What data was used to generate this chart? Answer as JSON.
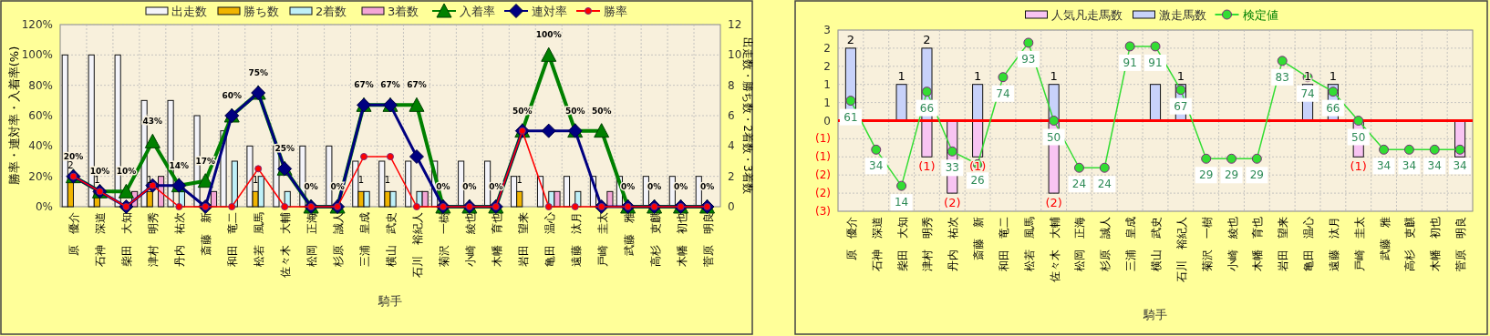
{
  "chart_data": [
    {
      "type": "bar",
      "categories": [
        "原　優介",
        "石神　深道",
        "柴田　大知",
        "津村　明秀",
        "丹内　祐次",
        "斎藤　新",
        "和田　竜二",
        "松若　風馬",
        "佐々木　大輔",
        "松岡　正海",
        "杉原　誠人",
        "三浦　皇成",
        "横山　武史",
        "石川　裕紀人",
        "菊沢　一樹",
        "小崎　綾也",
        "木幡　育也",
        "岩田　望来",
        "亀田　温心",
        "遠藤　汰月",
        "戸崎　圭太",
        "武藤　雅",
        "高杉　吏麒",
        "木幡　初也",
        "菅原　明良"
      ],
      "xlabel": "騎手",
      "ylabel": "勝率・連対率・入着率(%)",
      "y2label": "出走数・勝ち数・2着数・3着数",
      "ylim": [
        0,
        120
      ],
      "yticks": [
        {
          "value": 0,
          "label": "0%"
        },
        {
          "value": 20,
          "label": "20%"
        },
        {
          "value": 40,
          "label": "40%"
        },
        {
          "value": 60,
          "label": "60%"
        },
        {
          "value": 80,
          "label": "80%"
        },
        {
          "value": 100,
          "label": "100%"
        },
        {
          "value": 120,
          "label": "120%"
        }
      ],
      "y2lim": [
        0,
        12
      ],
      "y2ticks": [
        0,
        2,
        4,
        6,
        8,
        10,
        12
      ],
      "grid": true,
      "legend": "top",
      "series": [
        {
          "name": "出走数",
          "color": "#f4f4fa",
          "axis": "y2",
          "values": [
            10,
            10,
            10,
            7,
            7,
            6,
            5,
            4,
            4,
            4,
            4,
            3,
            3,
            3,
            3,
            3,
            3,
            2,
            2,
            2,
            2,
            2,
            2,
            2,
            2
          ]
        },
        {
          "name": "勝ち数",
          "color": "#f0b400",
          "axis": "y2",
          "values": [
            2,
            1,
            0,
            1,
            0,
            0,
            0,
            1,
            0,
            0,
            0,
            1,
            1,
            0,
            0,
            0,
            0,
            1,
            0,
            0,
            0,
            0,
            0,
            0,
            0
          ],
          "value_labels": [
            "2",
            "1",
            null,
            "1",
            null,
            null,
            null,
            "1",
            null,
            null,
            null,
            "1",
            "1",
            null,
            null,
            null,
            null,
            "1",
            null,
            null,
            null,
            null,
            null,
            null,
            null
          ]
        },
        {
          "name": "2着数",
          "color": "#bff0f8",
          "axis": "y2",
          "values": [
            0,
            0,
            0,
            0,
            1,
            0,
            3,
            2,
            1,
            0,
            0,
            1,
            1,
            1,
            0,
            0,
            0,
            0,
            1,
            1,
            0,
            0,
            0,
            0,
            0
          ]
        },
        {
          "name": "3着数",
          "color": "#f4a6d6",
          "axis": "y2",
          "values": [
            0,
            0,
            1,
            2,
            0,
            1,
            0,
            0,
            0,
            0,
            0,
            0,
            0,
            1,
            0,
            0,
            0,
            0,
            1,
            0,
            1,
            0,
            0,
            0,
            0
          ]
        },
        {
          "name": "入着率",
          "type": "line",
          "color": "#008000",
          "marker": "triangle",
          "values": [
            20,
            10,
            10,
            43,
            14,
            17,
            60,
            75,
            25,
            0,
            0,
            67,
            67,
            67,
            0,
            0,
            0,
            50,
            100,
            50,
            50,
            0,
            0,
            0,
            0
          ],
          "value_labels": [
            "20%",
            "10%",
            "10%",
            "43%",
            "14%",
            "17%",
            "60%",
            "75%",
            "25%",
            "0%",
            "0%",
            "67%",
            "67%",
            "67%",
            "0%",
            "0%",
            "0%",
            "50%",
            "100%",
            "50%",
            "50%",
            "0%",
            "0%",
            "0%",
            "0%"
          ]
        },
        {
          "name": "連対率",
          "type": "line",
          "color": "#000080",
          "marker": "diamond",
          "values": [
            20,
            10,
            0,
            14,
            14,
            0,
            60,
            75,
            25,
            0,
            0,
            67,
            67,
            33,
            0,
            0,
            0,
            50,
            50,
            50,
            0,
            0,
            0,
            0,
            0
          ]
        },
        {
          "name": "勝率",
          "type": "line",
          "color": "#ff0000",
          "marker": "circle",
          "values": [
            20,
            10,
            0,
            14,
            0,
            0,
            0,
            25,
            0,
            0,
            0,
            33,
            33,
            0,
            0,
            0,
            0,
            50,
            0,
            0,
            0,
            0,
            0,
            0,
            0
          ]
        }
      ]
    },
    {
      "type": "bar",
      "categories": [
        "原　優介",
        "石神　深道",
        "柴田　大知",
        "津村　明秀",
        "丹内　祐次",
        "斎藤　新",
        "和田　竜二",
        "松若　風馬",
        "佐々木　大輔",
        "松岡　正海",
        "杉原　誠人",
        "三浦　皇成",
        "横山　武史",
        "石川　裕紀人",
        "菊沢　一樹",
        "小崎　綾也",
        "木幡　育也",
        "岩田　望来",
        "亀田　温心",
        "遠藤　汰月",
        "戸崎　圭太",
        "武藤　雅",
        "高杉　吏麒",
        "木幡　初也",
        "菅原　明良"
      ],
      "xlabel": "騎手",
      "stacked": true,
      "ylim": [
        -2.5,
        2.5
      ],
      "yticks": [
        {
          "value": -2.5,
          "label": "(3)"
        },
        {
          "value": -2,
          "label": "(2)"
        },
        {
          "value": -1.5,
          "label": "(2)"
        },
        {
          "value": -1,
          "label": "(1)"
        },
        {
          "value": -0.5,
          "label": "(1)"
        },
        0,
        {
          "value": 0.5,
          "label": "1"
        },
        1,
        {
          "value": 1.5,
          "label": "2"
        },
        2,
        {
          "value": 2.5,
          "label": "3"
        }
      ],
      "y2lim": [
        0,
        100
      ],
      "grid": true,
      "legend": "top",
      "ref_lines": [
        {
          "axis": "y",
          "value": 0,
          "color": "#ff0000"
        }
      ],
      "series": [
        {
          "name": "人気凡走馬数",
          "color": "#f8c4f2",
          "values": [
            0,
            0,
            0,
            -1,
            -2,
            -1,
            0,
            0,
            -2,
            0,
            0,
            0,
            0,
            0,
            0,
            0,
            0,
            0,
            0,
            0,
            -1,
            0,
            0,
            0,
            -1
          ],
          "value_labels": [
            null,
            null,
            null,
            "(1)",
            "(2)",
            "(1)",
            null,
            null,
            "(2)",
            null,
            null,
            null,
            null,
            null,
            null,
            null,
            null,
            null,
            null,
            null,
            "(1)",
            null,
            null,
            null,
            null
          ]
        },
        {
          "name": "激走馬数",
          "color": "#c8d2fa",
          "values": [
            2,
            0,
            1,
            2,
            0,
            1,
            0,
            0,
            1,
            0,
            0,
            0,
            1,
            1,
            0,
            0,
            0,
            0,
            1,
            1,
            0,
            0,
            0,
            0,
            0
          ],
          "value_labels": [
            "2",
            null,
            "1",
            "2",
            null,
            "1",
            null,
            null,
            "1",
            null,
            null,
            null,
            null,
            "1",
            null,
            null,
            null,
            null,
            "1",
            "1",
            null,
            null,
            null,
            null,
            null
          ]
        },
        {
          "name": "検定値",
          "type": "line",
          "axis": "y2",
          "color": "#33dd33",
          "marker": "circle",
          "values": [
            61,
            34,
            14,
            66,
            33,
            26,
            74,
            93,
            50,
            24,
            24,
            91,
            91,
            67,
            29,
            29,
            29,
            83,
            74,
            66,
            50,
            34,
            34,
            34,
            34
          ],
          "value_labels": [
            "61",
            "34",
            "14",
            "66",
            "33",
            "26",
            "74",
            "93",
            "50",
            "24",
            "24",
            "91",
            "91",
            "67",
            "29",
            "29",
            "29",
            "83",
            "74",
            "66",
            "50",
            "34",
            "34",
            "34",
            "34"
          ]
        }
      ]
    }
  ]
}
